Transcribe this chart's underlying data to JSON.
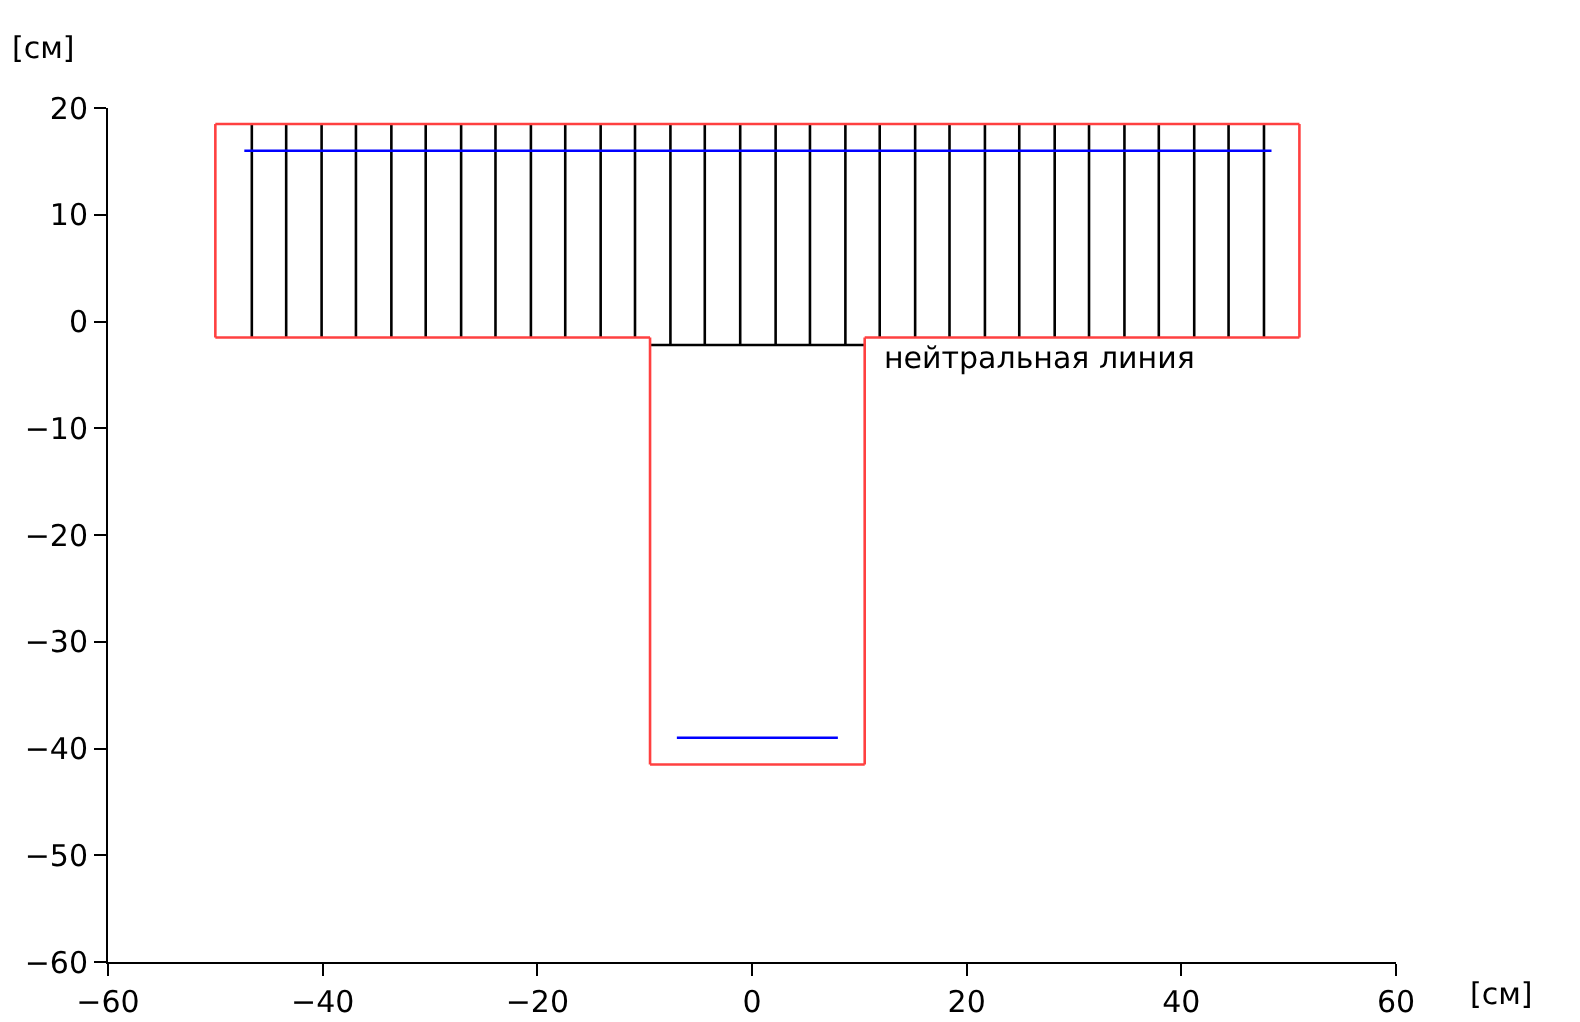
{
  "chart_data": {
    "type": "line",
    "xlabel": "[см]",
    "ylabel": "[см]",
    "xlim": [
      -60,
      60
    ],
    "ylim": [
      -60,
      20
    ],
    "xticks": [
      -60,
      -40,
      -20,
      0,
      20,
      40,
      60
    ],
    "yticks": [
      -60,
      -50,
      -40,
      -30,
      -20,
      -10,
      0,
      10,
      20
    ],
    "grid": false,
    "marker": "none",
    "line_style": "solid",
    "annotations": [
      {
        "text": "нейтральная линия",
        "x": 12,
        "y": -2.2
      }
    ],
    "series": [
      {
        "color": "#000000",
        "x": [
          -46.6,
          -46.6,
          null,
          -43.4,
          -43.4,
          null,
          -40.1,
          -40.1,
          null,
          -36.9,
          -36.9,
          null,
          -33.6,
          -33.6,
          null,
          -30.4,
          -30.4,
          null,
          -27.1,
          -27.1,
          null,
          -23.9,
          -23.9,
          null,
          -20.6,
          -20.6,
          null,
          -17.4,
          -17.4,
          null,
          -14.1,
          -14.1,
          null,
          -10.9,
          -10.9,
          null,
          -7.6,
          -7.6,
          null,
          -4.4,
          -4.4,
          null,
          -1.1,
          -1.1,
          null,
          2.2,
          2.2,
          null,
          5.4,
          5.4,
          null,
          8.7,
          8.7,
          null,
          11.9,
          11.9,
          null,
          15.2,
          15.2,
          null,
          18.4,
          18.4,
          null,
          21.7,
          21.7,
          null,
          24.9,
          24.9,
          null,
          28.2,
          28.2,
          null,
          31.4,
          31.4,
          null,
          34.7,
          34.7,
          null,
          37.9,
          37.9,
          null,
          41.2,
          41.2,
          null,
          44.4,
          44.4,
          null,
          47.7,
          47.7
        ],
        "values": [
          18.5,
          -1.5,
          null,
          18.5,
          -1.5,
          null,
          18.5,
          -1.5,
          null,
          18.5,
          -1.5,
          null,
          18.5,
          -1.5,
          null,
          18.5,
          -1.5,
          null,
          18.5,
          -1.5,
          null,
          18.5,
          -1.5,
          null,
          18.5,
          -1.5,
          null,
          18.5,
          -1.5,
          null,
          18.5,
          -1.5,
          null,
          18.5,
          -1.5,
          null,
          18.5,
          -2.2,
          null,
          18.5,
          -2.2,
          null,
          18.5,
          -2.2,
          null,
          18.5,
          -2.2,
          null,
          18.5,
          -2.2,
          null,
          18.5,
          -2.2,
          null,
          18.5,
          -1.5,
          null,
          18.5,
          -1.5,
          null,
          18.5,
          -1.5,
          null,
          18.5,
          -1.5,
          null,
          18.5,
          -1.5,
          null,
          18.5,
          -1.5,
          null,
          18.5,
          -1.5,
          null,
          18.5,
          -1.5,
          null,
          18.5,
          -1.5,
          null,
          18.5,
          -1.5,
          null,
          18.5,
          -1.5,
          null,
          18.5,
          -1.5
        ]
      },
      {
        "color": "#000000",
        "x": [
          -9.5,
          10.5
        ],
        "values": [
          -2.2,
          -2.2
        ]
      },
      {
        "color": "#0000ff",
        "x": [
          -47.3,
          48.4
        ],
        "values": [
          16,
          16
        ]
      },
      {
        "color": "#0000ff",
        "x": [
          -7,
          8
        ],
        "values": [
          -39,
          -39
        ]
      },
      {
        "color": "#ff4040",
        "x": [
          -50,
          51,
          null,
          51,
          51,
          null,
          51,
          10.5,
          null,
          10.5,
          10.5,
          null,
          10.5,
          -9.5,
          null,
          -9.5,
          -9.5,
          null,
          -9.5,
          -50,
          null,
          -50,
          -50
        ],
        "values": [
          18.5,
          18.5,
          null,
          18.5,
          -1.5,
          null,
          -1.5,
          -1.5,
          null,
          -1.5,
          -41.5,
          null,
          -41.5,
          -41.5,
          null,
          -41.5,
          -1.5,
          null,
          -1.5,
          -1.5,
          null,
          -1.5,
          18.5
        ]
      }
    ]
  }
}
